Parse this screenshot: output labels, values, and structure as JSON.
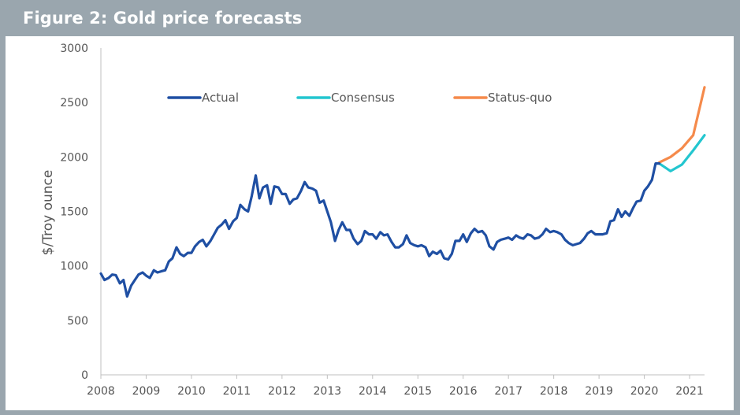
{
  "header": {
    "title": "Figure 2: Gold price forecasts"
  },
  "chart_data": {
    "type": "line",
    "title": "Figure 2: Gold price forecasts",
    "xlabel": "",
    "ylabel": "$/Troy ounce",
    "xlim": [
      2008.0,
      2021.33
    ],
    "ylim": [
      0,
      3000
    ],
    "yticks": [
      0,
      500,
      1000,
      1500,
      2000,
      2500,
      3000
    ],
    "xticks": [
      2008,
      2009,
      2010,
      2011,
      2012,
      2013,
      2014,
      2015,
      2016,
      2017,
      2018,
      2019,
      2020,
      2021
    ],
    "legend_position": "top-center",
    "colors": {
      "actual": "#1f4fa3",
      "consensus": "#23c6cf",
      "status_quo": "#f58a4b"
    },
    "series": [
      {
        "name": "Actual",
        "x": [
          2008.0,
          2008.08,
          2008.17,
          2008.25,
          2008.33,
          2008.42,
          2008.5,
          2008.58,
          2008.67,
          2008.75,
          2008.83,
          2008.92,
          2009.0,
          2009.08,
          2009.17,
          2009.25,
          2009.33,
          2009.42,
          2009.5,
          2009.58,
          2009.67,
          2009.75,
          2009.83,
          2009.92,
          2010.0,
          2010.08,
          2010.17,
          2010.25,
          2010.33,
          2010.42,
          2010.5,
          2010.58,
          2010.67,
          2010.75,
          2010.83,
          2010.92,
          2011.0,
          2011.08,
          2011.17,
          2011.25,
          2011.33,
          2011.42,
          2011.5,
          2011.58,
          2011.67,
          2011.75,
          2011.83,
          2011.92,
          2012.0,
          2012.08,
          2012.17,
          2012.25,
          2012.33,
          2012.42,
          2012.5,
          2012.58,
          2012.67,
          2012.75,
          2012.83,
          2012.92,
          2013.0,
          2013.08,
          2013.17,
          2013.25,
          2013.33,
          2013.42,
          2013.5,
          2013.58,
          2013.67,
          2013.75,
          2013.83,
          2013.92,
          2014.0,
          2014.08,
          2014.17,
          2014.25,
          2014.33,
          2014.42,
          2014.5,
          2014.58,
          2014.67,
          2014.75,
          2014.83,
          2014.92,
          2015.0,
          2015.08,
          2015.17,
          2015.25,
          2015.33,
          2015.42,
          2015.5,
          2015.58,
          2015.67,
          2015.75,
          2015.83,
          2015.92,
          2016.0,
          2016.08,
          2016.17,
          2016.25,
          2016.33,
          2016.42,
          2016.5,
          2016.58,
          2016.67,
          2016.75,
          2016.83,
          2016.92,
          2017.0,
          2017.08,
          2017.17,
          2017.25,
          2017.33,
          2017.42,
          2017.5,
          2017.58,
          2017.67,
          2017.75,
          2017.83,
          2017.92,
          2018.0,
          2018.08,
          2018.17,
          2018.25,
          2018.33,
          2018.42,
          2018.5,
          2018.58,
          2018.67,
          2018.75,
          2018.83,
          2018.92,
          2019.0,
          2019.08,
          2019.17,
          2019.25,
          2019.33,
          2019.42,
          2019.5,
          2019.58,
          2019.67,
          2019.75,
          2019.83,
          2019.92,
          2020.0,
          2020.08,
          2020.17,
          2020.25,
          2020.33
        ],
        "values": [
          930,
          870,
          890,
          920,
          915,
          840,
          870,
          720,
          820,
          870,
          920,
          940,
          910,
          890,
          960,
          940,
          950,
          960,
          1040,
          1070,
          1170,
          1110,
          1090,
          1120,
          1120,
          1180,
          1220,
          1240,
          1180,
          1230,
          1290,
          1350,
          1380,
          1420,
          1340,
          1410,
          1440,
          1560,
          1520,
          1500,
          1640,
          1830,
          1620,
          1720,
          1740,
          1570,
          1730,
          1720,
          1660,
          1660,
          1570,
          1610,
          1620,
          1690,
          1770,
          1720,
          1710,
          1690,
          1580,
          1600,
          1500,
          1400,
          1230,
          1330,
          1400,
          1330,
          1330,
          1250,
          1200,
          1230,
          1320,
          1290,
          1290,
          1250,
          1310,
          1280,
          1290,
          1220,
          1170,
          1170,
          1200,
          1280,
          1210,
          1190,
          1180,
          1190,
          1170,
          1090,
          1130,
          1110,
          1140,
          1070,
          1060,
          1110,
          1230,
          1230,
          1290,
          1220,
          1300,
          1340,
          1310,
          1320,
          1280,
          1180,
          1150,
          1220,
          1240,
          1250,
          1260,
          1240,
          1280,
          1260,
          1250,
          1290,
          1280,
          1250,
          1260,
          1290,
          1340,
          1310,
          1320,
          1310,
          1290,
          1240,
          1210,
          1190,
          1200,
          1210,
          1250,
          1300,
          1320,
          1290,
          1290,
          1290,
          1300,
          1410,
          1420,
          1520,
          1450,
          1500,
          1460,
          1530,
          1590,
          1600,
          1690,
          1730,
          1790,
          1940,
          1940
        ]
      },
      {
        "name": "Consensus",
        "x": [
          2020.33,
          2020.58,
          2020.83,
          2021.08,
          2021.33
        ],
        "values": [
          1940,
          1870,
          1930,
          2060,
          2200
        ]
      },
      {
        "name": "Status-quo",
        "x": [
          2020.33,
          2020.58,
          2020.83,
          2021.08,
          2021.33
        ],
        "values": [
          1950,
          2000,
          2080,
          2200,
          2640
        ]
      }
    ]
  }
}
